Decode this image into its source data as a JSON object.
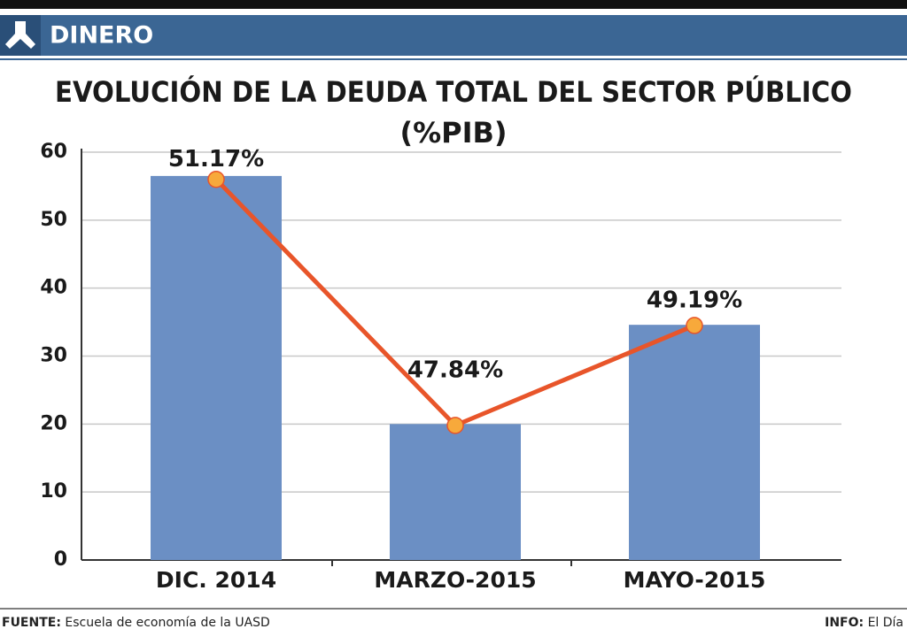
{
  "header": {
    "section": "DINERO"
  },
  "chart_data": {
    "type": "bar",
    "title": "EVOLUCIÓN DE LA DEUDA TOTAL DEL SECTOR PÚBLICO",
    "subtitle": "(%PIB)",
    "categories": [
      "DIC. 2014",
      "MARZO-2015",
      "MAYO-2015"
    ],
    "series": [
      {
        "type": "bar",
        "color": "#6b8fc4",
        "values": [
          56.5,
          20,
          34.6
        ]
      },
      {
        "type": "line",
        "color": "#e8552a",
        "marker_color": "#f7a93b",
        "values": [
          56,
          19.8,
          34.5
        ]
      }
    ],
    "annotations": [
      "51.17%",
      "47.84%",
      "49.19%"
    ],
    "ylim": [
      0,
      60
    ],
    "yticks": [
      0,
      10,
      20,
      30,
      40,
      50,
      60
    ],
    "grid": true
  },
  "footer": {
    "source_label": "FUENTE:",
    "source": "Escuela de economía de la UASD",
    "info_label": "INFO:",
    "info": "El Día"
  }
}
